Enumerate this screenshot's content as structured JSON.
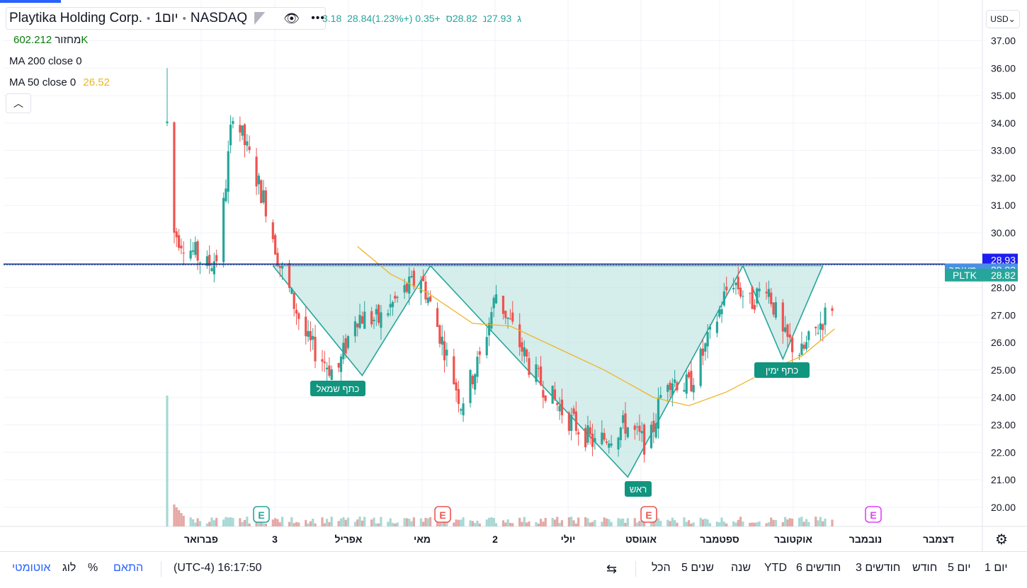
{
  "header": {
    "title": "Playtika Holding Corp.",
    "interval": "1יום",
    "exchange": "NASDAQ",
    "ohlc": {
      "open": "3.18",
      "high": "28.84ג",
      "low": "27.93נ",
      "close": "28.82ס",
      "change": "+0.35 (+1.23%)"
    }
  },
  "indicators": {
    "volume": {
      "label": "מחזור",
      "value": "602.212K"
    },
    "ma200": {
      "label": "MA 200 close 0",
      "value": ""
    },
    "ma50": {
      "label": "MA 50 close 0",
      "value": "26.52"
    }
  },
  "currency": "USD",
  "colors": {
    "up": "#26a69a",
    "down": "#ef5350",
    "ma50": "#f0b429",
    "pattern_fill": "#b2dfdb",
    "pattern_line": "#26a69a",
    "price_line": "#131f8a",
    "blue_tag": "#2962ff",
    "earnings_blue": "#26a69a",
    "earnings_red": "#ef5350",
    "earnings_pink": "#e040fb"
  },
  "price_tags": {
    "high": "28.93",
    "last_label": "מאוחר",
    "last": "28.83",
    "ticker": "PLTK",
    "ticker_price": "28.82"
  },
  "bottombar": {
    "ranges": [
      "יום 1",
      "5 יום",
      "חודש",
      "3 חודשים",
      "6 חודשים",
      "YTD",
      "שנה",
      "5 שנים",
      "הכל"
    ],
    "timezone": "(UTC-4) 16:17:50",
    "fit": "התאם",
    "percent": "%",
    "log": "לוג",
    "auto": "אוטומטי"
  },
  "chart_data": {
    "type": "candlestick",
    "y_ticks": [
      "37.00",
      "36.00",
      "35.00",
      "34.00",
      "33.00",
      "32.00",
      "31.00",
      "30.00",
      "29.00",
      "28.00",
      "27.00",
      "26.00",
      "25.00",
      "24.00",
      "23.00",
      "22.00",
      "21.00",
      "20.00"
    ],
    "ylim": [
      19.3,
      37.4
    ],
    "x_ticks": [
      "פברואר",
      "3",
      "אפריל",
      "מאי",
      "2",
      "יולי",
      "אוגוסט",
      "ספטמבר",
      "אוקטובר",
      "נובמבר",
      "דצמבר"
    ],
    "pattern_labels": [
      {
        "text": "כתף שמאל",
        "price": 24.4
      },
      {
        "text": "ראש",
        "price": 20.9
      },
      {
        "text": "כתף ימין",
        "price": 25.3
      }
    ],
    "pattern_points": [
      [
        "2021-03-01",
        28.8
      ],
      [
        "2021-04-08",
        24.8
      ],
      [
        "2021-05-07",
        28.8
      ],
      [
        "2021-07-30",
        21.1
      ],
      [
        "2021-09-17",
        28.8
      ],
      [
        "2021-10-04",
        25.4
      ],
      [
        "2021-10-21",
        28.8
      ]
    ],
    "neckline": 28.8,
    "earnings": [
      {
        "date": "2021-03-02",
        "color": "blue"
      },
      {
        "date": "2021-05-12",
        "color": "red"
      },
      {
        "date": "2021-08-04",
        "color": "red"
      },
      {
        "date": "2021-11-04",
        "color": "pink"
      }
    ],
    "ma50": [
      [
        "2021-04-06",
        29.5
      ],
      [
        "2021-04-20",
        28.5
      ],
      [
        "2021-05-06",
        27.8
      ],
      [
        "2021-05-25",
        26.7
      ],
      [
        "2021-06-10",
        26.6
      ],
      [
        "2021-06-30",
        25.8
      ],
      [
        "2021-07-20",
        25.0
      ],
      [
        "2021-08-10",
        24.0
      ],
      [
        "2021-08-25",
        23.7
      ],
      [
        "2021-09-10",
        24.2
      ],
      [
        "2021-09-28",
        25.0
      ],
      [
        "2021-10-12",
        25.5
      ],
      [
        "2021-10-26",
        26.5
      ]
    ],
    "candle_summary": {
      "first_open_date": "2021-01-15",
      "high": 36.0,
      "low": 21.0,
      "last_close": 28.82
    }
  }
}
